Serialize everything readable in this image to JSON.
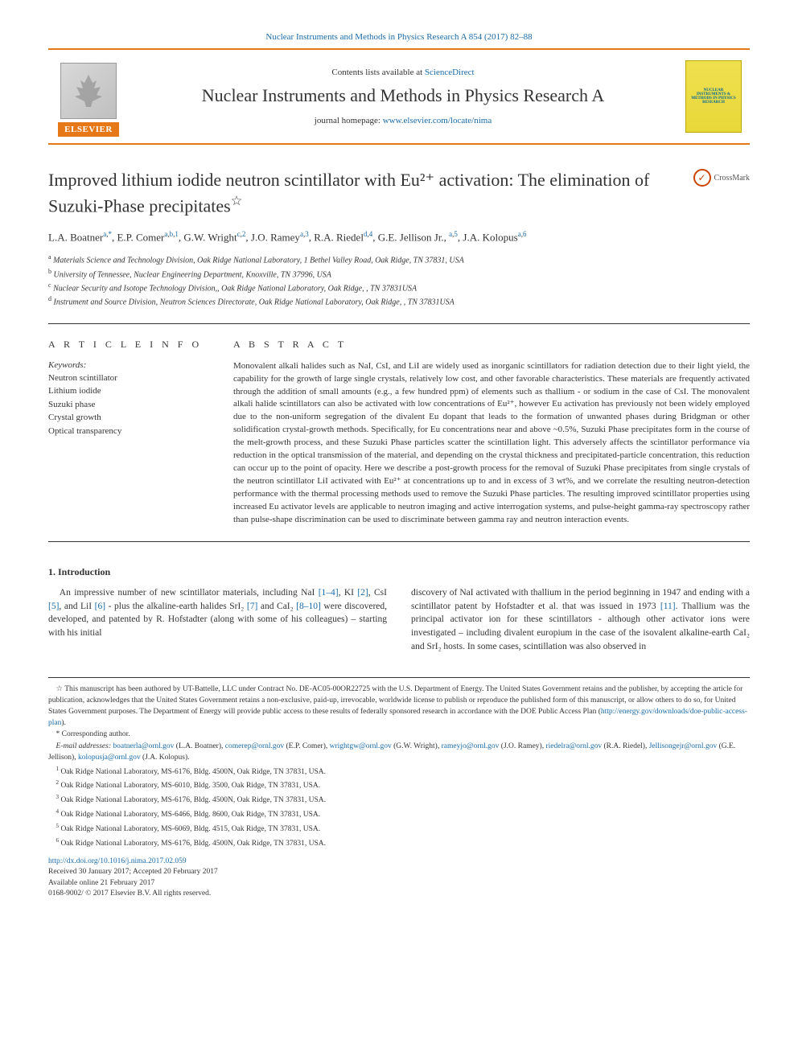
{
  "top_link": "Nuclear Instruments and Methods in Physics Research A 854 (2017) 82–88",
  "header": {
    "contents_prefix": "Contents lists available at ",
    "contents_link": "ScienceDirect",
    "journal_name": "Nuclear Instruments and Methods in Physics Research A",
    "homepage_prefix": "journal homepage: ",
    "homepage_link": "www.elsevier.com/locate/nima",
    "elsevier": "ELSEVIER",
    "cover_text": "NUCLEAR INSTRUMENTS & METHODS IN PHYSICS RESEARCH"
  },
  "title": "Improved lithium iodide neutron scintillator with Eu²⁺ activation: The elimination of Suzuki-Phase precipitates",
  "title_star": "☆",
  "crossmark": "CrossMark",
  "authors_html": "L.A. Boatner<sup><a>a</a>,<a>*</a></sup>, E.P. Comer<sup><a>a</a>,<a>b</a>,<a>1</a></sup>, G.W. Wright<sup><a>c</a>,<a>2</a></sup>, J.O. Ramey<sup><a>a</a>,<a>3</a></sup>, R.A. Riedel<sup><a>d</a>,<a>4</a></sup>, G.E. Jellison Jr., <sup><a>a</a>,<a>5</a></sup>, J.A. Kolopus<sup><a>a</a>,<a>6</a></sup>",
  "affiliations": [
    {
      "tag": "a",
      "text": "Materials Science and Technology Division, Oak Ridge National Laboratory, 1 Bethel Valley Road, Oak Ridge, TN 37831, USA"
    },
    {
      "tag": "b",
      "text": "University of Tennessee, Nuclear Engineering Department, Knoxville, TN 37996, USA"
    },
    {
      "tag": "c",
      "text": "Nuclear Security and Isotope Technology Division,, Oak Ridge National Laboratory, Oak Ridge, , TN 37831USA"
    },
    {
      "tag": "d",
      "text": "Instrument and Source Division, Neutron Sciences Directorate, Oak Ridge National Laboratory, Oak Ridge, , TN 37831USA"
    }
  ],
  "article_info": {
    "heading": "A R T I C L E  I N F O",
    "keywords_label": "Keywords:",
    "keywords": [
      "Neutron scintillator",
      "Lithium iodide",
      "Suzuki phase",
      "Crystal growth",
      "Optical transparency"
    ]
  },
  "abstract": {
    "heading": "A B S T R A C T",
    "text": "Monovalent alkali halides such as NaI, CsI, and LiI are widely used as inorganic scintillators for radiation detection due to their light yield, the capability for the growth of large single crystals, relatively low cost, and other favorable characteristics. These materials are frequently activated through the addition of small amounts (e.g., a few hundred ppm) of elements such as thallium - or sodium in the case of CsI. The monovalent alkali halide scintillators can also be activated with low concentrations of Eu²⁺, however Eu activation has previously not been widely employed due to the non-uniform segregation of the divalent Eu dopant that leads to the formation of unwanted phases during Bridgman or other solidification crystal-growth methods. Specifically, for Eu concentrations near and above ~0.5%, Suzuki Phase precipitates form in the course of the melt-growth process, and these Suzuki Phase particles scatter the scintillation light. This adversely affects the scintillator performance via reduction in the optical transmission of the material, and depending on the crystal thickness and precipitated-particle concentration, this reduction can occur up to the point of opacity. Here we describe a post-growth process for the removal of Suzuki Phase precipitates from single crystals of the neutron scintillator LiI activated with Eu²⁺ at concentrations up to and in excess of 3 wt%, and we correlate the resulting neutron-detection performance with the thermal processing methods used to remove the Suzuki Phase particles. The resulting improved scintillator properties using increased Eu activator levels are applicable to neutron imaging and active interrogation systems, and pulse-height gamma-ray spectroscopy rather than pulse-shape discrimination can be used to discriminate between gamma ray and neutron interaction events."
  },
  "intro": {
    "heading": "1. Introduction",
    "para1_html": "An impressive number of new scintillator materials, including NaI <a>[1–4]</a>, KI <a>[2]</a>, CsI <a>[5]</a>, and LiI <a>[6]</a> - plus the alkaline-earth halides SrI₂ <a>[7]</a> and CaI₂ <a>[8–10]</a> were discovered, developed, and patented by R. Hofstadter (along with some of his colleagues) – starting with his initial",
    "para2_html": "discovery of NaI activated with thallium in the period beginning in 1947 and ending with a scintillator patent by Hofstadter et al. that was issued in 1973 <a>[11]</a>. Thallium was the principal activator ion for these scintillators - although other activator ions were investigated – including divalent europium in the case of the isovalent alkaline-earth CaI₂ and SrI₂ hosts. In some cases, scintillation was also observed in"
  },
  "footnotes": {
    "star_html": "☆ This manuscript has been authored by UT-Battelle, LLC under Contract No. DE-AC05-00OR22725 with the U.S. Department of Energy. The United States Government retains and the publisher, by accepting the article for publication, acknowledges that the United States Government retains a non-exclusive, paid-up, irrevocable, worldwide license to publish or reproduce the published form of this manuscript, or allow others to do so, for United States Government purposes. The Department of Energy will provide public access to these results of federally sponsored research in accordance with the DOE Public Access Plan (<a>http://energy.gov/downloads/doe-public-access-plan</a>).",
    "corr": "* Corresponding author.",
    "email_label": "E-mail addresses: ",
    "emails_html": "<a>boatnerla@ornl.gov</a> (L.A. Boatner), <a>comerep@ornl.gov</a> (E.P. Comer), <a>wrightgw@ornl.gov</a> (G.W. Wright), <a>rameyjo@ornl.gov</a> (J.O. Ramey), <a>riedelra@ornl.gov</a> (R.A. Riedel), <a>Jellisongejr@ornl.gov</a> (G.E. Jellison), <a>kolopusja@ornl.gov</a> (J.A. Kolopus).",
    "addresses": [
      {
        "n": "1",
        "text": "Oak Ridge National Laboratory, MS-6176, Bldg. 4500N, Oak Ridge, TN 37831, USA."
      },
      {
        "n": "2",
        "text": "Oak Ridge National Laboratory, MS-6010, Bldg. 3500, Oak Ridge, TN 37831, USA."
      },
      {
        "n": "3",
        "text": "Oak Ridge National Laboratory, MS-6176, Bldg. 4500N, Oak Ridge, TN 37831, USA."
      },
      {
        "n": "4",
        "text": "Oak Ridge National Laboratory, MS-6466, Bldg. 8600, Oak Ridge, TN 37831, USA."
      },
      {
        "n": "5",
        "text": "Oak Ridge National Laboratory, MS-6069, Bldg. 4515, Oak Ridge, TN 37831, USA."
      },
      {
        "n": "6",
        "text": "Oak Ridge National Laboratory, MS-6176, Bldg. 4500N, Oak Ridge, TN 37831, USA."
      }
    ]
  },
  "doi": {
    "link": "http://dx.doi.org/10.1016/j.nima.2017.02.059",
    "received": "Received 30 January 2017; Accepted 20 February 2017",
    "online": "Available online 21 February 2017",
    "copyright": "0168-9002/ © 2017 Elsevier B.V. All rights reserved."
  },
  "colors": {
    "accent": "#e67817",
    "link": "#1a6ba8",
    "cover_bg": "#f0e050"
  }
}
